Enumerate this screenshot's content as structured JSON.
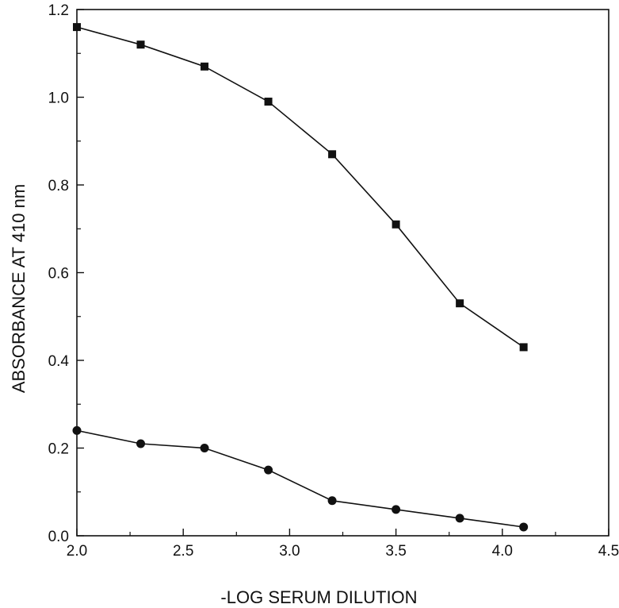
{
  "chart_data": {
    "type": "line",
    "title": "",
    "xlabel": "-LOG SERUM DILUTION",
    "ylabel": "ABSORBANCE AT 410 nm",
    "xlim": [
      2.0,
      4.5
    ],
    "ylim": [
      0.0,
      1.2
    ],
    "x_ticks": [
      "2.0",
      "2.5",
      "3.0",
      "3.5",
      "4.0",
      "4.5"
    ],
    "y_ticks": [
      "0.0",
      "0.2",
      "0.4",
      "0.6",
      "0.8",
      "1.0",
      "1.2"
    ],
    "grid": false,
    "legend": "none",
    "x": [
      2.0,
      2.3,
      2.6,
      2.9,
      3.2,
      3.5,
      3.8,
      4.1
    ],
    "series": [
      {
        "marker": "square",
        "color": "#111111",
        "values": [
          1.16,
          1.12,
          1.07,
          0.99,
          0.87,
          0.71,
          0.53,
          0.43
        ]
      },
      {
        "marker": "circle",
        "color": "#111111",
        "values": [
          0.24,
          0.21,
          0.2,
          0.15,
          0.08,
          0.06,
          0.04,
          0.02
        ]
      }
    ]
  }
}
